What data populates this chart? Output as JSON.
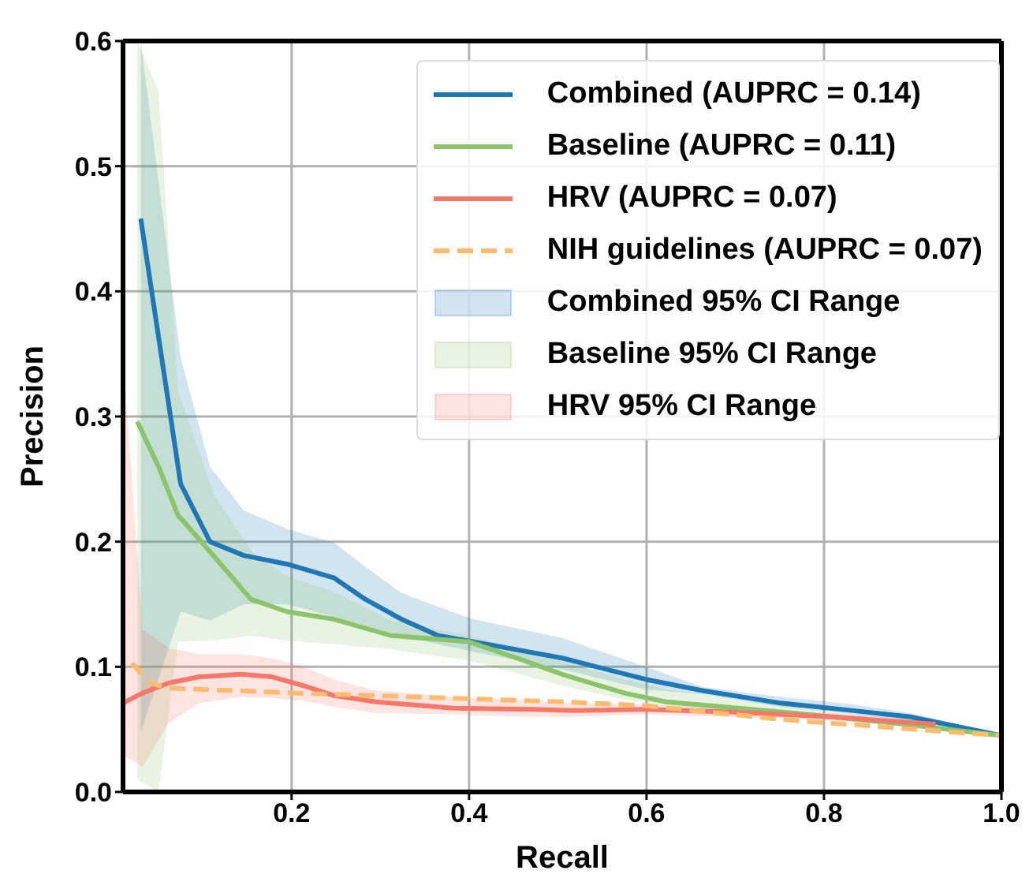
{
  "chart_data": {
    "type": "line",
    "xlabel": "Recall",
    "ylabel": "Precision",
    "xlim": [
      0.01,
      1.0
    ],
    "ylim": [
      0,
      0.6
    ],
    "xticks": [
      {
        "value": 0.2,
        "label": "0.2"
      },
      {
        "value": 0.4,
        "label": "0.4"
      },
      {
        "value": 0.6,
        "label": "0.6"
      },
      {
        "value": 0.8,
        "label": "0.8"
      },
      {
        "value": 1.0,
        "label": "1.0"
      }
    ],
    "yticks": [
      {
        "value": 0,
        "label": "0.0"
      },
      {
        "value": 0.1,
        "label": "0.1"
      },
      {
        "value": 0.2,
        "label": "0.2"
      },
      {
        "value": 0.3,
        "label": "0.3"
      },
      {
        "value": 0.4,
        "label": "0.4"
      },
      {
        "value": 0.5,
        "label": "0.5"
      },
      {
        "value": 0.6,
        "label": "0.6"
      }
    ],
    "grid": true,
    "legend": "top right",
    "series": [
      {
        "type": "line",
        "name": "Combined (AUPRC = 0.14)",
        "color": "#1f77b4",
        "line_style": "solid",
        "x": [
          0.03,
          0.075,
          0.108,
          0.146,
          0.195,
          0.248,
          0.283,
          0.324,
          0.365,
          0.405,
          0.505,
          0.599,
          0.663,
          0.751,
          0.833,
          0.897,
          1.0
        ],
        "values": [
          0.458,
          0.246,
          0.2,
          0.189,
          0.182,
          0.171,
          0.154,
          0.138,
          0.125,
          0.12,
          0.107,
          0.09,
          0.081,
          0.071,
          0.065,
          0.06,
          0.045
        ],
        "lower": [
          0.048,
          0.144,
          0.137,
          0.15,
          0.15,
          0.14,
          0.133,
          0.125,
          0.118,
          0.112,
          0.098,
          0.082,
          0.078,
          0.068,
          0.062,
          0.057,
          0.044
        ],
        "upper": [
          0.6,
          0.347,
          0.26,
          0.225,
          0.21,
          0.199,
          0.18,
          0.159,
          0.148,
          0.138,
          0.123,
          0.1,
          0.084,
          0.076,
          0.07,
          0.063,
          0.046
        ]
      },
      {
        "type": "line",
        "name": "Baseline (AUPRC = 0.11)",
        "color": "#8bc46a",
        "line_style": "solid",
        "x": [
          0.026,
          0.05,
          0.072,
          0.113,
          0.154,
          0.195,
          0.248,
          0.312,
          0.4,
          0.458,
          0.505,
          0.575,
          0.622,
          0.751,
          0.868,
          1.0
        ],
        "values": [
          0.296,
          0.26,
          0.221,
          0.188,
          0.154,
          0.144,
          0.138,
          0.125,
          0.12,
          0.106,
          0.094,
          0.079,
          0.072,
          0.064,
          0.056,
          0.045
        ],
        "lower": [
          0.01,
          0.0,
          0.12,
          0.121,
          0.125,
          0.121,
          0.118,
          0.114,
          0.105,
          0.094,
          0.085,
          0.074,
          0.069,
          0.061,
          0.054,
          0.044
        ],
        "upper": [
          0.6,
          0.56,
          0.32,
          0.237,
          0.193,
          0.172,
          0.16,
          0.137,
          0.125,
          0.114,
          0.104,
          0.09,
          0.082,
          0.069,
          0.058,
          0.045
        ]
      },
      {
        "type": "line",
        "name": "HRV (AUPRC = 0.07)",
        "color": "#f4796b",
        "line_style": "solid",
        "x": [
          0.01,
          0.032,
          0.061,
          0.096,
          0.143,
          0.178,
          0.213,
          0.248,
          0.295,
          0.382,
          0.47,
          0.517,
          0.599,
          0.692,
          0.809,
          0.926
        ],
        "values": [
          0.071,
          0.079,
          0.087,
          0.092,
          0.094,
          0.092,
          0.085,
          0.077,
          0.072,
          0.067,
          0.066,
          0.065,
          0.066,
          0.064,
          0.06,
          0.054
        ],
        "lower": [
          0.03,
          0.02,
          0.055,
          0.071,
          0.076,
          0.075,
          0.073,
          0.068,
          0.063,
          0.062,
          0.06,
          0.06,
          0.062,
          0.06,
          0.057,
          0.051
        ],
        "upper": [
          0.35,
          0.13,
          0.115,
          0.11,
          0.11,
          0.107,
          0.1,
          0.09,
          0.081,
          0.076,
          0.073,
          0.071,
          0.07,
          0.067,
          0.063,
          0.057
        ]
      },
      {
        "type": "line",
        "name": "NIH guidelines (AUPRC = 0.07)",
        "color": "#ffbb6e",
        "line_style": "dashed",
        "x": [
          0.02,
          0.04,
          0.061,
          0.207,
          0.505,
          0.599,
          0.751,
          1.0
        ],
        "values": [
          0.103,
          0.087,
          0.083,
          0.079,
          0.072,
          0.069,
          0.058,
          0.045
        ]
      },
      {
        "type": "area",
        "name": "Combined 95% CI Range",
        "color": "#1f77b4"
      },
      {
        "type": "area",
        "name": "Baseline 95% CI Range",
        "color": "#8bc46a"
      },
      {
        "type": "area",
        "name": "HRV 95% CI Range",
        "color": "#f4796b"
      }
    ]
  }
}
